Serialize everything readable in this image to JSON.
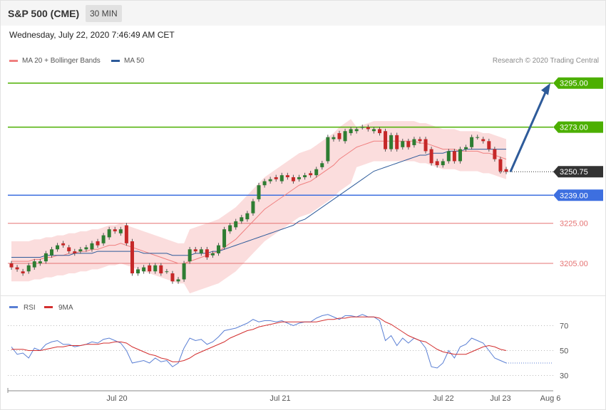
{
  "header": {
    "title": "S&P 500 (CME)",
    "interval": "30 MIN",
    "timestamp": "Wednesday, July 22, 2020 7:46:49 AM CET"
  },
  "legend": {
    "ma20": {
      "label": "MA 20 + Bollinger Bands",
      "color": "#f08080"
    },
    "ma50": {
      "label": "MA 50",
      "color": "#2e5b9a"
    },
    "copyright": "Research © 2020 Trading Central"
  },
  "colors": {
    "up": "#2e7d32",
    "down": "#c62828",
    "resistance": "#4caf00",
    "pivot": "#3d6fe0",
    "support": "#e57373",
    "current": "#333333",
    "arrow": "#2e5b9a",
    "bollinger": "#fbd9d9",
    "rsi": "#5a7fd4",
    "rsi_ma": "#d32f2f"
  },
  "chart_data": [
    {
      "type": "candlestick",
      "title": "S&P 500 (CME)",
      "ylim": [
        3189,
        3302
      ],
      "x_labels": [
        "Jul 20",
        "Jul 21",
        "Jul 22",
        "Jul 23",
        "Aug 6"
      ],
      "levels": [
        {
          "value": 3295.0,
          "label": "3295.00",
          "kind": "resistance"
        },
        {
          "value": 3273.0,
          "label": "3273.00",
          "kind": "resistance"
        },
        {
          "value": 3250.75,
          "label": "3250.75",
          "kind": "current"
        },
        {
          "value": 3239.0,
          "label": "3239.00",
          "kind": "pivot"
        },
        {
          "value": 3225.0,
          "label": "3225.00",
          "kind": "support"
        },
        {
          "value": 3205.0,
          "label": "3205.00",
          "kind": "support"
        }
      ],
      "projection": {
        "from": 3250.75,
        "to": 3295.0
      },
      "close": [
        3203,
        3202,
        3200,
        3204,
        3206,
        3206,
        3210,
        3212,
        3214,
        3214,
        3211,
        3210,
        3212,
        3213,
        3215,
        3214,
        3219,
        3222,
        3221,
        3222,
        3215,
        3200,
        3202,
        3203,
        3201,
        3204,
        3200,
        3201,
        3196,
        3197,
        3205,
        3212,
        3211,
        3212,
        3208,
        3210,
        3214,
        3222,
        3224,
        3226,
        3228,
        3230,
        3236,
        3244,
        3246,
        3247,
        3247,
        3249,
        3248,
        3246,
        3248,
        3249,
        3249,
        3252,
        3255,
        3268,
        3268,
        3267,
        3271,
        3272,
        3272,
        3273,
        3272,
        3272,
        3270,
        3262,
        3269,
        3262,
        3266,
        3263,
        3267,
        3266,
        3261,
        3255,
        3254,
        3256,
        3261,
        3256,
        3262,
        3263,
        3268,
        3268,
        3266,
        3262,
        3257,
        3251,
        3250.75
      ],
      "open": [
        3205,
        3203,
        3201,
        3201,
        3203,
        3205,
        3206,
        3209,
        3212,
        3215,
        3213,
        3211,
        3211,
        3212,
        3212,
        3216,
        3215,
        3218,
        3222,
        3220,
        3224,
        3216,
        3200,
        3201,
        3204,
        3201,
        3204,
        3201,
        3200,
        3196,
        3197,
        3206,
        3212,
        3210,
        3212,
        3209,
        3210,
        3213,
        3221,
        3223,
        3226,
        3227,
        3230,
        3237,
        3244,
        3246,
        3248,
        3246,
        3249,
        3248,
        3247,
        3248,
        3250,
        3249,
        3253,
        3256,
        3267,
        3270,
        3266,
        3270,
        3271,
        3273,
        3273,
        3271,
        3272,
        3271,
        3262,
        3269,
        3263,
        3266,
        3264,
        3267,
        3267,
        3262,
        3256,
        3254,
        3256,
        3261,
        3256,
        3262,
        3263,
        3268,
        3267,
        3266,
        3262,
        3257,
        3252
      ],
      "ma20": [
        3206,
        3206,
        3206,
        3206,
        3207,
        3207,
        3208,
        3208,
        3209,
        3209,
        3210,
        3210,
        3211,
        3211,
        3212,
        3212,
        3213,
        3214,
        3214,
        3215,
        3214,
        3213,
        3212,
        3211,
        3210,
        3209,
        3208,
        3207,
        3206,
        3205,
        3205,
        3206,
        3207,
        3208,
        3209,
        3210,
        3211,
        3213,
        3215,
        3217,
        3220,
        3223,
        3226,
        3229,
        3232,
        3234,
        3236,
        3238,
        3240,
        3242,
        3244,
        3245,
        3246,
        3248,
        3250,
        3252,
        3254,
        3257,
        3259,
        3261,
        3263,
        3264,
        3265,
        3266,
        3266,
        3266,
        3266,
        3266,
        3266,
        3266,
        3266,
        3265,
        3265,
        3264,
        3263,
        3262,
        3262,
        3262,
        3261,
        3261,
        3261,
        3261,
        3260,
        3260,
        3259,
        3258,
        3257
      ],
      "ma50": [
        3208,
        3208,
        3208,
        3208,
        3208,
        3208,
        3209,
        3209,
        3209,
        3209,
        3209,
        3210,
        3210,
        3210,
        3210,
        3211,
        3211,
        3211,
        3211,
        3211,
        3211,
        3211,
        3211,
        3210,
        3210,
        3210,
        3210,
        3210,
        3209,
        3209,
        3209,
        3209,
        3210,
        3210,
        3210,
        3211,
        3211,
        3212,
        3213,
        3214,
        3215,
        3216,
        3217,
        3218,
        3219,
        3220,
        3221,
        3222,
        3223,
        3224,
        3226,
        3227,
        3229,
        3231,
        3233,
        3235,
        3237,
        3239,
        3241,
        3243,
        3245,
        3247,
        3249,
        3251,
        3252,
        3253,
        3254,
        3255,
        3256,
        3257,
        3258,
        3259,
        3259,
        3260,
        3260,
        3260,
        3261,
        3261,
        3261,
        3262,
        3262,
        3262,
        3262,
        3262,
        3262,
        3262,
        3262
      ]
    },
    {
      "type": "line",
      "series": [
        {
          "name": "RSI",
          "values": [
            53,
            47,
            48,
            44,
            52,
            50,
            55,
            57,
            58,
            55,
            55,
            53,
            54,
            55,
            57,
            56,
            59,
            60,
            58,
            56,
            50,
            40,
            41,
            42,
            40,
            44,
            41,
            42,
            37,
            40,
            52,
            60,
            58,
            59,
            55,
            57,
            61,
            66,
            67,
            68,
            70,
            72,
            75,
            73,
            74,
            74,
            73,
            74,
            72,
            70,
            72,
            73,
            73,
            76,
            78,
            79,
            77,
            75,
            78,
            78,
            77,
            79,
            77,
            77,
            74,
            58,
            62,
            54,
            60,
            56,
            60,
            58,
            52,
            37,
            36,
            40,
            50,
            44,
            53,
            55,
            60,
            58,
            56,
            50,
            44,
            42,
            40
          ]
        },
        {
          "name": "9MA",
          "values": [
            51,
            51,
            51,
            50,
            50,
            50,
            51,
            52,
            53,
            53,
            54,
            54,
            54,
            55,
            55,
            55,
            56,
            56,
            57,
            57,
            56,
            53,
            51,
            49,
            47,
            46,
            44,
            43,
            41,
            41,
            42,
            44,
            47,
            49,
            51,
            53,
            55,
            57,
            60,
            62,
            64,
            66,
            67,
            69,
            70,
            71,
            72,
            73,
            73,
            73,
            73,
            73,
            73,
            73,
            74,
            75,
            75,
            76,
            76,
            77,
            77,
            77,
            77,
            77,
            76,
            73,
            71,
            68,
            65,
            62,
            60,
            58,
            57,
            54,
            51,
            49,
            48,
            47,
            47,
            47,
            49,
            51,
            53,
            54,
            53,
            51,
            50
          ]
        }
      ],
      "ylim": [
        20,
        80
      ],
      "yticks": [
        "70",
        "50",
        "30"
      ]
    }
  ]
}
